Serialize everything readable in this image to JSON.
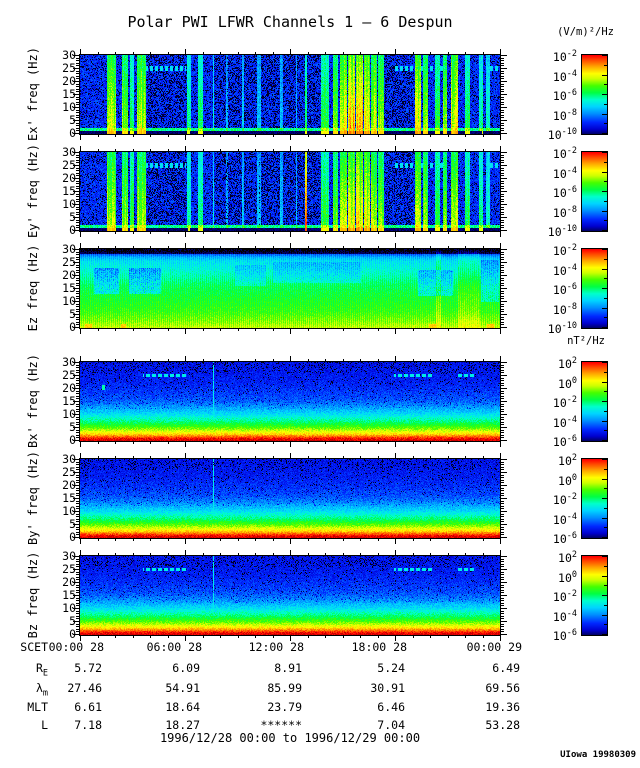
{
  "title": "Polar PWI LFWR Channels 1 — 6 Despun",
  "footer": "1996/12/28 00:00 to 1996/12/29 00:00",
  "credit": "UIowa 19980309",
  "chart_data": {
    "type": "heatmap",
    "x_axis": {
      "start": "1996/12/28 00:00",
      "end": "1996/12/29 00:00",
      "hours": 24,
      "major_tick_hours": 6,
      "minor_tick_hours": 1
    },
    "y_axis": {
      "unit": "Hz",
      "min": 0,
      "max": 30,
      "major_ticks": [
        0,
        5,
        10,
        15,
        20,
        25,
        30
      ],
      "minor_tick_step": 1
    },
    "colormap_stops": [
      [
        0.0,
        "#000000"
      ],
      [
        0.05,
        "#00004a"
      ],
      [
        0.12,
        "#0000d0"
      ],
      [
        0.2,
        "#0028ff"
      ],
      [
        0.3,
        "#0090ff"
      ],
      [
        0.38,
        "#00d4ff"
      ],
      [
        0.46,
        "#00ffcc"
      ],
      [
        0.54,
        "#00ff44"
      ],
      [
        0.62,
        "#44ff00"
      ],
      [
        0.7,
        "#ccff00"
      ],
      [
        0.76,
        "#ffff00"
      ],
      [
        0.84,
        "#ffa800"
      ],
      [
        0.92,
        "#ff4400"
      ],
      [
        0.97,
        "#ff0000"
      ],
      [
        1.0,
        "#c80000"
      ]
    ],
    "colorbars": {
      "e": {
        "unit": "(V/m)²/Hz",
        "exponents": [
          "-2",
          "-4",
          "-6",
          "-8",
          "-10"
        ],
        "decades": 8
      },
      "b": {
        "unit": "nT²/Hz",
        "exponents": [
          "2",
          "0",
          "-2",
          "-4",
          "-6"
        ],
        "decades": 8
      }
    },
    "panels": [
      {
        "id": "ex",
        "label": "Ex' freq (Hz)",
        "group": "e",
        "render": "e-dark",
        "seed": 137,
        "base": 0.2,
        "bands": [
          [
            1.5,
            2.0,
            0.42
          ],
          [
            2.4,
            2.7,
            0.38
          ],
          [
            2.85,
            3.05,
            0.3
          ],
          [
            3.25,
            3.72,
            0.42
          ],
          [
            6.1,
            6.32,
            0.25
          ],
          [
            6.7,
            7.0,
            0.28
          ],
          [
            7.55,
            7.65,
            0.2
          ],
          [
            8.3,
            8.42,
            0.12
          ],
          [
            9.25,
            9.35,
            0.14
          ],
          [
            10.1,
            10.3,
            0.13
          ],
          [
            11.4,
            11.55,
            0.14
          ],
          [
            12.3,
            12.4,
            0.12
          ],
          [
            12.85,
            12.95,
            0.3
          ],
          [
            13.75,
            14.2,
            0.32
          ],
          [
            14.4,
            14.7,
            0.38
          ],
          [
            14.85,
            15.2,
            0.46
          ],
          [
            15.3,
            15.7,
            0.52
          ],
          [
            15.75,
            16.15,
            0.52
          ],
          [
            16.2,
            16.55,
            0.48
          ],
          [
            16.6,
            16.95,
            0.42
          ],
          [
            17.0,
            17.35,
            0.4
          ],
          [
            19.1,
            19.45,
            0.45
          ],
          [
            19.6,
            19.85,
            0.38
          ],
          [
            20.25,
            20.55,
            0.32
          ],
          [
            20.7,
            20.95,
            0.38
          ],
          [
            21.2,
            21.55,
            0.45
          ],
          [
            21.95,
            22.25,
            0.32
          ],
          [
            22.75,
            23.0,
            0.26
          ],
          [
            23.2,
            23.4,
            0.22
          ]
        ],
        "dark_regions": [
          [
            3.8,
            6.0
          ],
          [
            7.7,
            13.6
          ],
          [
            17.4,
            19.0
          ]
        ],
        "line25": [
          [
            3.7,
            6.0
          ],
          [
            18.0,
            20.7
          ],
          [
            23.25,
            23.9
          ]
        ]
      },
      {
        "id": "ey",
        "label": "Ey' freq (Hz)",
        "group": "e",
        "render": "e-dark",
        "seed": 421,
        "base": 0.2,
        "bands": [
          [
            1.5,
            2.0,
            0.42
          ],
          [
            2.4,
            2.7,
            0.38
          ],
          [
            2.85,
            3.05,
            0.3
          ],
          [
            3.25,
            3.72,
            0.42
          ],
          [
            6.1,
            6.32,
            0.25
          ],
          [
            6.7,
            7.0,
            0.28
          ],
          [
            7.55,
            7.65,
            0.2
          ],
          [
            8.3,
            8.42,
            0.12
          ],
          [
            9.25,
            9.35,
            0.14
          ],
          [
            10.1,
            10.3,
            0.13
          ],
          [
            11.4,
            11.55,
            0.14
          ],
          [
            12.3,
            12.4,
            0.12
          ],
          [
            12.85,
            12.95,
            0.55
          ],
          [
            13.75,
            14.2,
            0.32
          ],
          [
            14.4,
            14.7,
            0.36
          ],
          [
            14.85,
            15.2,
            0.42
          ],
          [
            15.3,
            15.7,
            0.48
          ],
          [
            15.75,
            16.15,
            0.48
          ],
          [
            16.2,
            16.55,
            0.45
          ],
          [
            16.6,
            16.95,
            0.4
          ],
          [
            17.0,
            17.35,
            0.38
          ],
          [
            19.1,
            19.45,
            0.45
          ],
          [
            19.6,
            19.85,
            0.38
          ],
          [
            20.25,
            20.55,
            0.32
          ],
          [
            20.7,
            20.95,
            0.38
          ],
          [
            21.2,
            21.55,
            0.45
          ],
          [
            21.95,
            22.25,
            0.32
          ],
          [
            22.75,
            23.0,
            0.26
          ],
          [
            23.2,
            23.4,
            0.22
          ]
        ],
        "dark_regions": [
          [
            3.8,
            6.0
          ],
          [
            7.7,
            13.6
          ],
          [
            17.4,
            19.0
          ]
        ],
        "line25": [
          [
            3.7,
            6.0
          ],
          [
            18.0,
            20.7
          ],
          [
            23.25,
            23.9
          ]
        ]
      },
      {
        "id": "ez",
        "label": "Ez freq (Hz)",
        "group": "e",
        "render": "e-green",
        "seed": 733,
        "freq_profile": [
          [
            0,
            0.7
          ],
          [
            2,
            0.66
          ],
          [
            6,
            0.6
          ],
          [
            12,
            0.56
          ],
          [
            16,
            0.53
          ],
          [
            20,
            0.47
          ],
          [
            23,
            0.43
          ],
          [
            25.5,
            0.4
          ],
          [
            27,
            0.34
          ],
          [
            28.3,
            0.24
          ],
          [
            30,
            0.12
          ]
        ],
        "patches": [
          [
            0.8,
            2.2,
            13,
            23,
            0.14
          ],
          [
            2.8,
            4.6,
            13,
            23,
            0.14
          ],
          [
            8.8,
            10.6,
            16,
            24,
            0.07
          ],
          [
            11.0,
            16.0,
            17,
            25,
            0.07
          ],
          [
            19.3,
            21.3,
            12,
            22,
            0.12
          ],
          [
            22.9,
            23.9,
            10,
            26,
            0.1
          ]
        ],
        "spots": [
          [
            0.25,
            0.65
          ],
          [
            2.3,
            2.6
          ],
          [
            19.9,
            20.3
          ],
          [
            23.25,
            23.6
          ]
        ],
        "bands": [
          [
            20.3,
            20.6,
            0.07
          ],
          [
            21.6,
            22.8,
            0.05
          ]
        ]
      },
      {
        "id": "bx",
        "label": "Bx' freq (Hz)",
        "group": "b",
        "render": "b-grad",
        "seed": 911,
        "freq_profile": [
          [
            0,
            1.0
          ],
          [
            0.7,
            0.97
          ],
          [
            1.5,
            0.89
          ],
          [
            2.3,
            0.81
          ],
          [
            3.2,
            0.74
          ],
          [
            4.2,
            0.67
          ],
          [
            5.2,
            0.61
          ],
          [
            6.2,
            0.56
          ],
          [
            7.2,
            0.51
          ],
          [
            8.5,
            0.46
          ],
          [
            10,
            0.4
          ],
          [
            12,
            0.34
          ],
          [
            14,
            0.28
          ],
          [
            16,
            0.24
          ],
          [
            19,
            0.21
          ],
          [
            23,
            0.18
          ],
          [
            30,
            0.16
          ]
        ],
        "line25": [
          [
            3.55,
            6.0
          ],
          [
            17.9,
            20.1
          ],
          [
            21.5,
            22.6
          ]
        ],
        "vline": 7.62,
        "dot": [
          1.3,
          20.5
        ]
      },
      {
        "id": "by",
        "label": "By' freq (Hz)",
        "group": "b",
        "render": "b-grad",
        "seed": 1234,
        "freq_profile": [
          [
            0,
            1.0
          ],
          [
            0.7,
            0.97
          ],
          [
            1.5,
            0.89
          ],
          [
            2.3,
            0.81
          ],
          [
            3.2,
            0.74
          ],
          [
            4.2,
            0.67
          ],
          [
            5.2,
            0.61
          ],
          [
            6.2,
            0.56
          ],
          [
            7.2,
            0.51
          ],
          [
            8.5,
            0.46
          ],
          [
            10,
            0.4
          ],
          [
            12,
            0.34
          ],
          [
            14,
            0.28
          ],
          [
            16,
            0.24
          ],
          [
            19,
            0.21
          ],
          [
            23,
            0.18
          ],
          [
            30,
            0.16
          ]
        ],
        "line25": [],
        "vline": 7.62
      },
      {
        "id": "bz",
        "label": "Bz freq (Hz)",
        "group": "b",
        "render": "b-grad",
        "seed": 555,
        "freq_profile": [
          [
            0,
            1.0
          ],
          [
            0.7,
            0.97
          ],
          [
            1.5,
            0.89
          ],
          [
            2.3,
            0.81
          ],
          [
            3.2,
            0.74
          ],
          [
            4.2,
            0.67
          ],
          [
            5.2,
            0.61
          ],
          [
            6.2,
            0.56
          ],
          [
            7.2,
            0.51
          ],
          [
            8.5,
            0.46
          ],
          [
            10,
            0.4
          ],
          [
            12,
            0.34
          ],
          [
            14,
            0.28
          ],
          [
            16,
            0.24
          ],
          [
            19,
            0.21
          ],
          [
            23,
            0.18
          ],
          [
            30,
            0.16
          ]
        ],
        "line25": [
          [
            3.55,
            6.0
          ],
          [
            17.9,
            20.1
          ],
          [
            21.5,
            22.6
          ]
        ],
        "vline": 7.62
      }
    ],
    "ephemeris": {
      "scet_label": "SCET",
      "times": [
        "00:00 28",
        "06:00 28",
        "12:00 28",
        "18:00 28",
        "00:00 29"
      ],
      "rows": [
        {
          "label": "R",
          "sub": "E",
          "values": [
            "5.72",
            "6.09",
            "8.91",
            "5.24",
            "6.49"
          ]
        },
        {
          "label": "λ",
          "sub": "m",
          "values": [
            "27.46",
            "54.91",
            "85.99",
            "30.91",
            "69.56"
          ]
        },
        {
          "label": "MLT",
          "sub": "",
          "values": [
            "6.61",
            "18.64",
            "23.79",
            "6.46",
            "19.36"
          ]
        },
        {
          "label": "L",
          "sub": "",
          "values": [
            "7.18",
            "18.27",
            "******",
            "7.04",
            "53.28"
          ]
        }
      ]
    }
  }
}
